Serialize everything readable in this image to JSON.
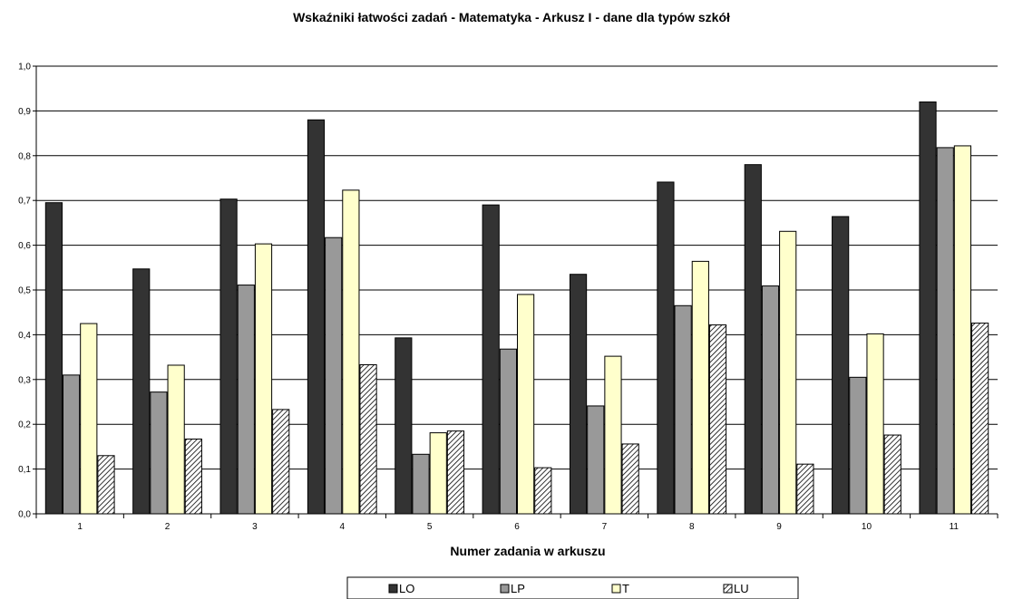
{
  "chart_data": {
    "type": "bar",
    "title": "Wskaźniki łatwości zadań - Matematyka - Arkusz I - dane dla typów szkół",
    "xlabel": "Numer zadania w arkuszu",
    "ylabel": "",
    "ylim": [
      0,
      1.0
    ],
    "yticks": [
      "0,0",
      "0,1",
      "0,2",
      "0,3",
      "0,4",
      "0,5",
      "0,6",
      "0,7",
      "0,8",
      "0,9",
      "1,0"
    ],
    "categories": [
      "1",
      "2",
      "3",
      "4",
      "5",
      "6",
      "7",
      "8",
      "9",
      "10",
      "11"
    ],
    "series": [
      {
        "name": "LO",
        "color": "#333333",
        "pattern": "solid",
        "values": [
          0.695,
          0.547,
          0.703,
          0.88,
          0.393,
          0.69,
          0.535,
          0.741,
          0.78,
          0.664,
          0.92
        ]
      },
      {
        "name": "LP",
        "color": "#999999",
        "pattern": "solid",
        "values": [
          0.31,
          0.272,
          0.511,
          0.617,
          0.133,
          0.368,
          0.241,
          0.465,
          0.509,
          0.305,
          0.818
        ]
      },
      {
        "name": "T",
        "color": "#ffffcc",
        "pattern": "solid",
        "values": [
          0.425,
          0.332,
          0.603,
          0.723,
          0.181,
          0.49,
          0.352,
          0.564,
          0.631,
          0.402,
          0.822
        ]
      },
      {
        "name": "LU",
        "color": "#ffffff",
        "pattern": "hatch",
        "values": [
          0.13,
          0.167,
          0.233,
          0.333,
          0.185,
          0.103,
          0.156,
          0.422,
          0.111,
          0.176,
          0.426
        ]
      }
    ],
    "grid": true,
    "legend_position": "bottom"
  }
}
